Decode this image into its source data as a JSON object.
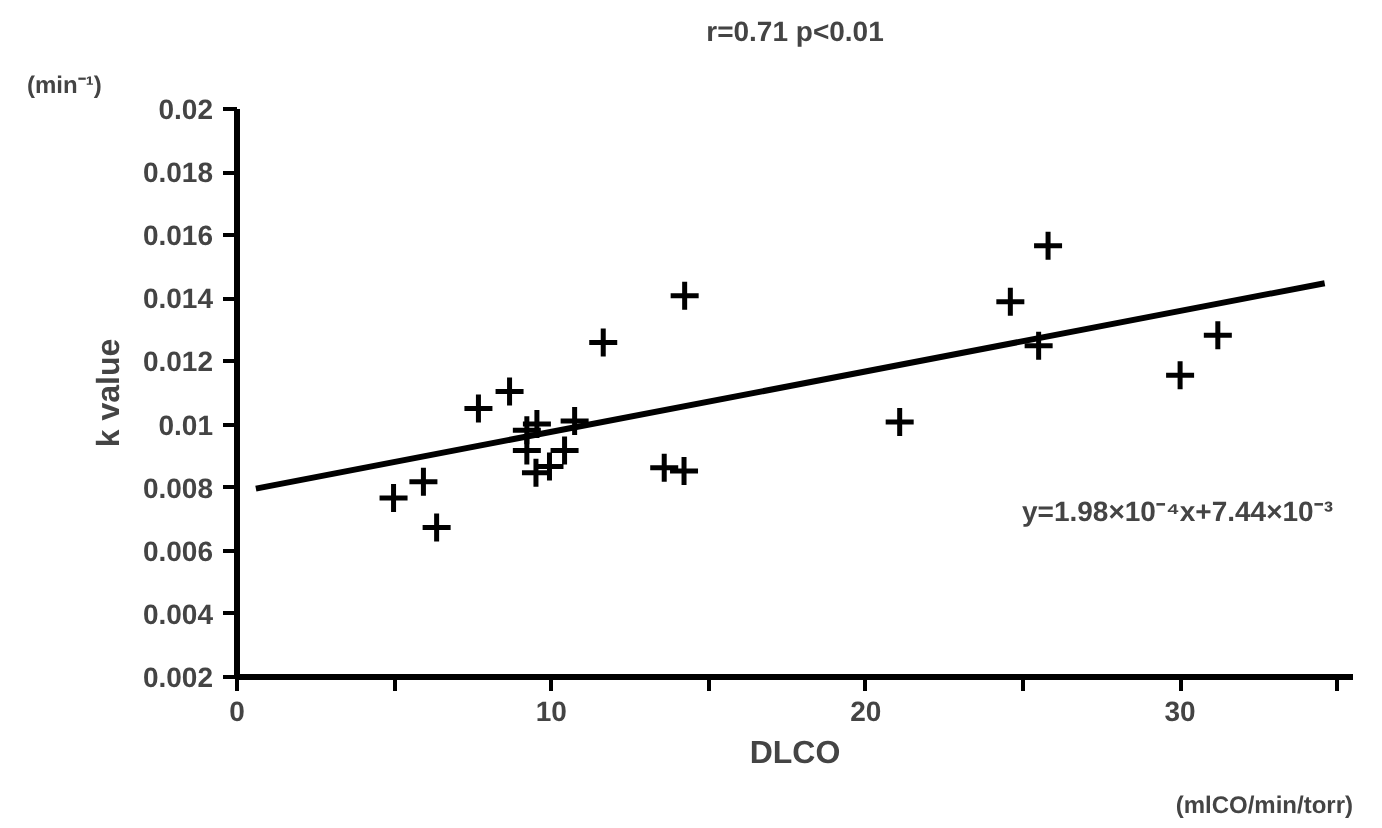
{
  "chart_data": {
    "type": "scatter",
    "title": "r=0.71 p<0.01",
    "xlabel": "DLCO",
    "ylabel": "k value",
    "annotations": [
      "y=1.98×10⁻⁴x+7.44×10⁻³",
      "(min⁻¹)",
      "(mlCO/min/torr)"
    ],
    "series": [
      {
        "marker": "cross",
        "color": "#000000",
        "x": [
          4.98,
          5.93,
          6.35,
          7.68,
          8.67,
          9.22,
          9.54,
          9.22,
          9.51,
          9.94,
          10.42,
          10.74,
          11.65,
          13.59,
          14.22,
          14.24,
          21.08,
          24.6,
          25.8,
          25.5,
          30.0,
          31.2
        ],
        "values": [
          0.00767,
          0.00819,
          0.00674,
          0.01051,
          0.01105,
          0.00982,
          0.01002,
          0.00918,
          0.00847,
          0.00867,
          0.00918,
          0.01011,
          0.0126,
          0.00863,
          0.00853,
          0.01408,
          0.01008,
          0.01389,
          0.01567,
          0.0125,
          0.01156,
          0.01283
        ]
      },
      {
        "type": "line",
        "marker": "none",
        "color": "#000000",
        "x": [
          0.6,
          34.6
        ],
        "values": [
          0.00797,
          0.01448
        ]
      }
    ],
    "line_style": "solid",
    "grid": false,
    "xlim": [
      0,
      35.5
    ],
    "xticks": [
      0,
      {
        "value": 5,
        "label": null
      },
      10,
      {
        "value": 15,
        "label": null
      },
      20,
      {
        "value": 25,
        "label": null
      },
      30,
      {
        "value": 35,
        "label": null
      }
    ],
    "ylim": [
      0.002,
      0.02
    ],
    "yticks": [
      0.002,
      0.004,
      0.006,
      0.008,
      0.01,
      0.012,
      0.014,
      0.016,
      0.018,
      0.02
    ]
  }
}
